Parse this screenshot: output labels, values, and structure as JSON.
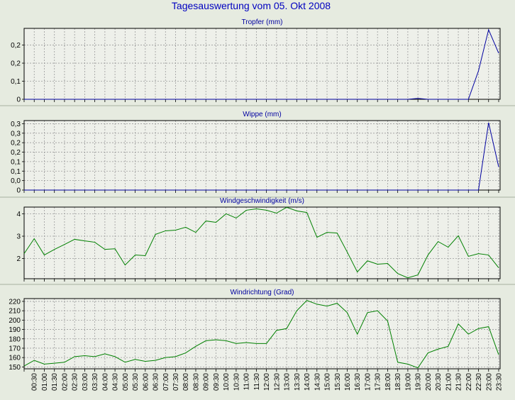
{
  "title": "Tagesauswertung vom 05. Okt 2008",
  "chart_data": [
    {
      "type": "line",
      "title": "Tropfer (mm)",
      "color": "#0000a0",
      "grid": true,
      "ylim": [
        0,
        0.314
      ],
      "yticks": [
        0,
        {
          "value": 0.08,
          "label": "0,1"
        },
        {
          "value": 0.16,
          "label": "0,2"
        },
        {
          "value": 0.24,
          "label": "0,2"
        }
      ],
      "values": [
        0,
        0,
        0,
        0,
        0,
        0,
        0,
        0,
        0,
        0,
        0,
        0,
        0,
        0,
        0,
        0,
        0,
        0,
        0,
        0,
        0,
        0,
        0,
        0,
        0,
        0,
        0,
        0,
        0,
        0,
        0,
        0,
        0,
        0,
        0,
        0,
        0,
        0,
        0,
        0.004,
        0,
        0,
        0,
        0,
        0,
        0.126,
        0.308,
        0.204
      ]
    },
    {
      "type": "line",
      "title": "Wippe (mm)",
      "color": "#0000a0",
      "grid": true,
      "ylim": [
        0,
        0.33
      ],
      "yticks": [
        0,
        {
          "value": 0.045,
          "label": "0,0"
        },
        {
          "value": 0.09,
          "label": "0,1"
        },
        {
          "value": 0.135,
          "label": "0,1"
        },
        {
          "value": 0.18,
          "label": "0,2"
        },
        {
          "value": 0.225,
          "label": "0,2"
        },
        {
          "value": 0.27,
          "label": "0,3"
        },
        {
          "value": 0.315,
          "label": "0,3"
        }
      ],
      "values": [
        0,
        0,
        0,
        0,
        0,
        0,
        0,
        0,
        0,
        0,
        0,
        0,
        0,
        0,
        0,
        0,
        0,
        0,
        0,
        0,
        0,
        0,
        0,
        0,
        0,
        0,
        0,
        0,
        0,
        0,
        0,
        0,
        0,
        0,
        0,
        0,
        0,
        0,
        0,
        0,
        0,
        0,
        0,
        0,
        0,
        0,
        0.32,
        0.11
      ]
    },
    {
      "type": "line",
      "title": "Windgeschwindigkeit (m/s)",
      "color": "#008000",
      "grid": true,
      "ylim": [
        1.1,
        4.3
      ],
      "yticks": [
        2,
        3,
        4
      ],
      "values": [
        2.22,
        2.89,
        2.16,
        2.41,
        2.63,
        2.86,
        2.79,
        2.73,
        2.41,
        2.44,
        1.71,
        2.16,
        2.13,
        3.08,
        3.24,
        3.27,
        3.4,
        3.17,
        3.68,
        3.62,
        4.0,
        3.81,
        4.16,
        4.22,
        4.16,
        4.03,
        4.29,
        4.13,
        4.06,
        2.95,
        3.17,
        3.14,
        2.29,
        1.4,
        1.9,
        1.75,
        1.78,
        1.33,
        1.14,
        1.27,
        2.16,
        2.76,
        2.51,
        3.02,
        2.1,
        2.22,
        2.16,
        1.59
      ]
    },
    {
      "type": "line",
      "title": "Windrichtung (Grad)",
      "color": "#008000",
      "grid": true,
      "ylim": [
        148,
        223
      ],
      "yticks": [
        150,
        160,
        170,
        180,
        190,
        200,
        210,
        220
      ],
      "values": [
        151,
        157,
        153,
        154,
        155,
        161,
        162,
        161,
        164,
        161,
        155,
        158,
        156,
        157,
        160,
        161,
        165,
        172,
        178,
        179,
        178,
        175,
        176,
        175,
        175,
        189,
        191,
        210,
        221,
        217,
        215,
        218,
        208,
        185,
        208,
        210,
        199,
        155,
        153,
        149,
        165,
        169,
        172,
        196,
        185,
        191,
        193,
        163
      ],
      "categories": [
        null,
        "00:30",
        "01:00",
        "01:30",
        "02:00",
        "02:30",
        "03:00",
        "03:30",
        "04:00",
        "04:30",
        "05:00",
        "05:30",
        "06:00",
        "06:30",
        "07:00",
        "07:30",
        "08:00",
        "08:30",
        "09:00",
        "09:30",
        "10:00",
        "10:30",
        "11:00",
        "11:30",
        "12:00",
        "12:30",
        "13:00",
        "13:30",
        "14:00",
        "14:30",
        "15:00",
        "15:30",
        "16:00",
        "16:30",
        "17:00",
        "17:30",
        "18:00",
        "18:30",
        "19:00",
        "19:30",
        "20:00",
        "20:30",
        "21:00",
        "21:30",
        "22:00",
        "22:30",
        "23:00",
        "23:30"
      ]
    }
  ]
}
